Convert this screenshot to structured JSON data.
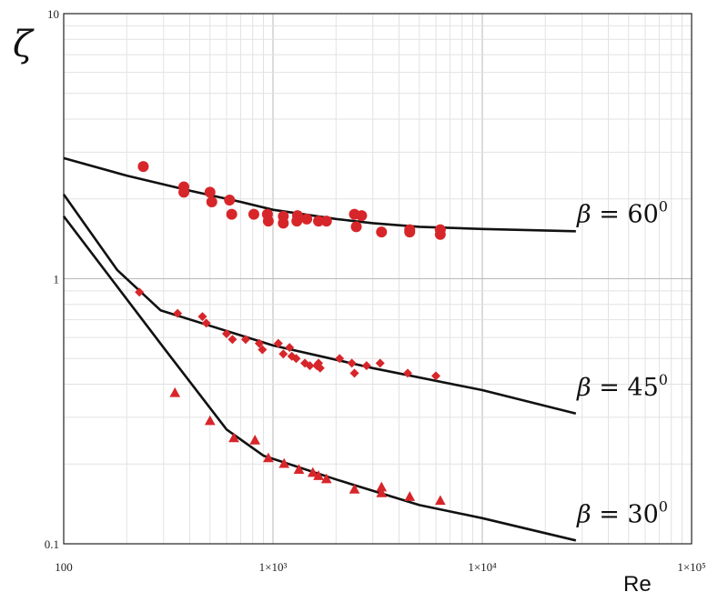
{
  "chart_data": {
    "type": "scatter",
    "title": "",
    "xlabel": "Re",
    "ylabel": "ζ",
    "xscale": "log",
    "yscale": "log",
    "xlim": [
      100,
      100000
    ],
    "ylim": [
      0.1,
      10
    ],
    "x_tick_labels": [
      "100",
      "1×10³",
      "1×10⁴",
      "1×10⁵"
    ],
    "y_tick_labels": [
      "0.1",
      "1",
      "10"
    ],
    "grid": true,
    "colors": {
      "markers": "#d7262a",
      "curves": "#111111",
      "grid_major": "#b9b9b9",
      "grid_minor": "#e2e2e2"
    },
    "series": [
      {
        "name": "β = 60⁰",
        "label_parts": {
          "greek": "β",
          "rest": " = 60",
          "sup": "0"
        },
        "marker": "circle",
        "points": [
          [
            240,
            2.65
          ],
          [
            375,
            2.22
          ],
          [
            375,
            2.12
          ],
          [
            500,
            2.12
          ],
          [
            510,
            1.95
          ],
          [
            620,
            1.98
          ],
          [
            635,
            1.75
          ],
          [
            810,
            1.75
          ],
          [
            940,
            1.75
          ],
          [
            950,
            1.65
          ],
          [
            1120,
            1.72
          ],
          [
            1120,
            1.62
          ],
          [
            1300,
            1.65
          ],
          [
            1310,
            1.73
          ],
          [
            1450,
            1.68
          ],
          [
            1650,
            1.65
          ],
          [
            1800,
            1.65
          ],
          [
            2450,
            1.75
          ],
          [
            2500,
            1.57
          ],
          [
            2650,
            1.73
          ],
          [
            3300,
            1.5
          ],
          [
            4500,
            1.5
          ],
          [
            4500,
            1.53
          ],
          [
            6300,
            1.47
          ],
          [
            6300,
            1.53
          ]
        ],
        "curve": [
          [
            100,
            2.85
          ],
          [
            200,
            2.45
          ],
          [
            400,
            2.15
          ],
          [
            700,
            1.95
          ],
          [
            1000,
            1.82
          ],
          [
            2000,
            1.68
          ],
          [
            3000,
            1.62
          ],
          [
            5000,
            1.57
          ],
          [
            10000,
            1.54
          ],
          [
            28000,
            1.51
          ]
        ]
      },
      {
        "name": "β = 45⁰",
        "label_parts": {
          "greek": "β",
          "rest": " = 45",
          "sup": "0"
        },
        "marker": "diamond",
        "points": [
          [
            230,
            0.89
          ],
          [
            350,
            0.74
          ],
          [
            460,
            0.72
          ],
          [
            480,
            0.68
          ],
          [
            600,
            0.62
          ],
          [
            640,
            0.59
          ],
          [
            740,
            0.59
          ],
          [
            860,
            0.57
          ],
          [
            890,
            0.54
          ],
          [
            1060,
            0.57
          ],
          [
            1120,
            0.52
          ],
          [
            1200,
            0.55
          ],
          [
            1230,
            0.51
          ],
          [
            1290,
            0.5
          ],
          [
            1420,
            0.48
          ],
          [
            1500,
            0.47
          ],
          [
            1620,
            0.47
          ],
          [
            1650,
            0.48
          ],
          [
            1680,
            0.46
          ],
          [
            2080,
            0.5
          ],
          [
            2380,
            0.48
          ],
          [
            2450,
            0.44
          ],
          [
            2800,
            0.47
          ],
          [
            3250,
            0.48
          ],
          [
            4400,
            0.44
          ],
          [
            6000,
            0.43
          ]
        ],
        "curve": [
          [
            100,
            2.08
          ],
          [
            180,
            1.08
          ],
          [
            290,
            0.76
          ],
          [
            1000,
            0.56
          ],
          [
            3000,
            0.46
          ],
          [
            10000,
            0.38
          ],
          [
            28000,
            0.31
          ]
        ]
      },
      {
        "name": "β = 30⁰",
        "label_parts": {
          "greek": "β",
          "rest": " = 30",
          "sup": "0"
        },
        "marker": "triangle",
        "points": [
          [
            340,
            0.37
          ],
          [
            500,
            0.29
          ],
          [
            650,
            0.25
          ],
          [
            820,
            0.245
          ],
          [
            950,
            0.21
          ],
          [
            1130,
            0.2
          ],
          [
            1330,
            0.19
          ],
          [
            1550,
            0.185
          ],
          [
            1650,
            0.18
          ],
          [
            1800,
            0.175
          ],
          [
            2450,
            0.16
          ],
          [
            3300,
            0.155
          ],
          [
            3300,
            0.163
          ],
          [
            4500,
            0.15
          ],
          [
            6300,
            0.145
          ]
        ],
        "curve": [
          [
            100,
            1.72
          ],
          [
            300,
            0.55
          ],
          [
            600,
            0.27
          ],
          [
            900,
            0.215
          ],
          [
            2000,
            0.175
          ],
          [
            5000,
            0.14
          ],
          [
            10000,
            0.125
          ],
          [
            28000,
            0.103
          ]
        ]
      }
    ]
  }
}
